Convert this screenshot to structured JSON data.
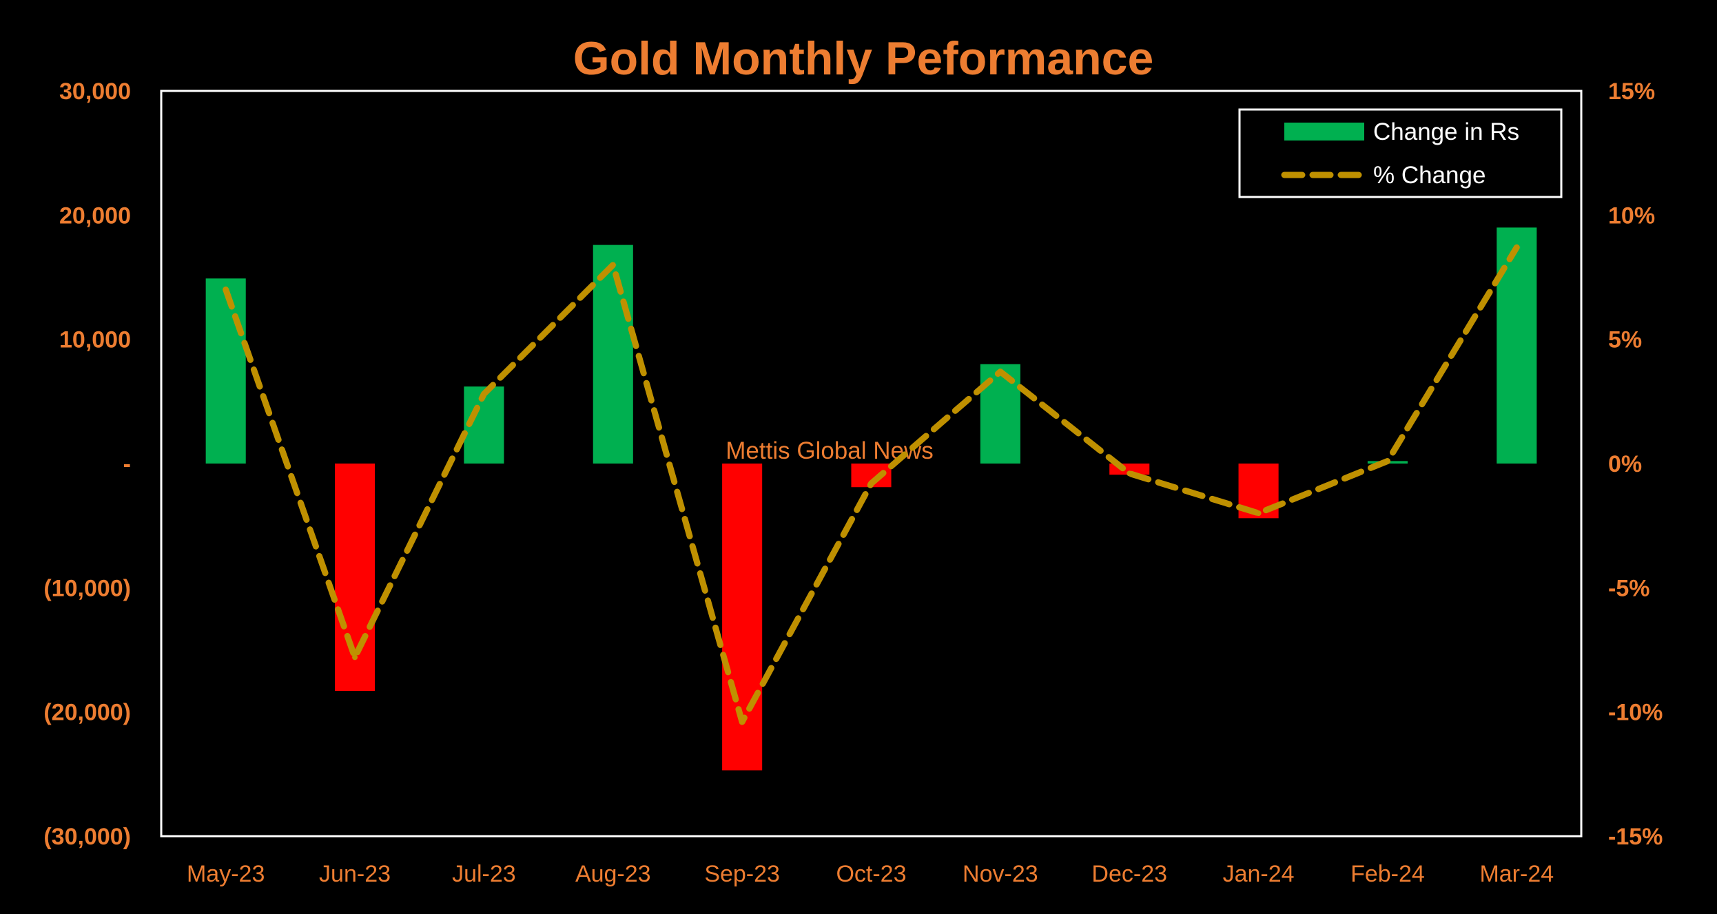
{
  "chart_data": {
    "type": "bar",
    "title": "Gold Monthly Peformance",
    "watermark": "Mettis Global News",
    "categories": [
      "May-23",
      "Jun-23",
      "Jul-23",
      "Aug-23",
      "Sep-23",
      "Oct-23",
      "Nov-23",
      "Dec-23",
      "Jan-24",
      "Feb-24",
      "Mar-24"
    ],
    "series": [
      {
        "name": "Change in Rs",
        "type": "bar",
        "axis": "left",
        "values": [
          14900,
          -18300,
          6200,
          17600,
          -24700,
          -1900,
          8000,
          -900,
          -4400,
          200,
          19000
        ],
        "positive_color": "#00b050",
        "negative_color": "#ff0000"
      },
      {
        "name": "% Change",
        "type": "line",
        "axis": "right",
        "style": "dashed",
        "values": [
          7.0,
          -7.8,
          2.8,
          8.0,
          -10.4,
          -0.8,
          3.7,
          -0.4,
          -2.0,
          0.1,
          8.7
        ],
        "unit": "%",
        "color": "#bf9000"
      }
    ],
    "y_left": {
      "ylim": [
        -30000,
        30000
      ],
      "ticks": [
        30000,
        20000,
        10000,
        0,
        -10000,
        -20000,
        -30000
      ],
      "tick_labels": [
        "30,000",
        "20,000",
        "10,000",
        "-",
        "(10,000)",
        "(20,000)",
        "(30,000)"
      ]
    },
    "y_right": {
      "ylim": [
        -15,
        15
      ],
      "ticks": [
        15,
        10,
        5,
        0,
        -5,
        -10,
        -15
      ],
      "tick_labels": [
        "15%",
        "10%",
        "5%",
        "0%",
        "-5%",
        "-10%",
        "-15%"
      ]
    },
    "grid": false,
    "legend_position": "top-right",
    "colors": {
      "background": "#000000",
      "text": "#ed7d31",
      "frame": "#ffffff",
      "legend_text": "#ffffff"
    }
  }
}
